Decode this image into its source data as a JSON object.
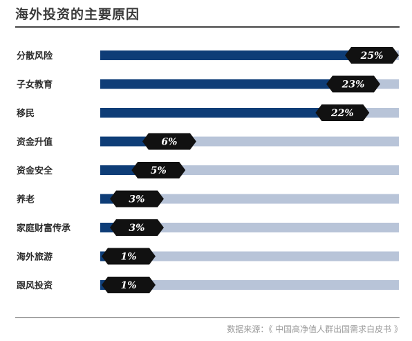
{
  "title": "海外投资的主要原因",
  "source": "数据来源：《 中国高净值人群出国需求白皮书 》",
  "colors": {
    "bar_fill": "#0e3d77",
    "bar_track": "#b8c4d8",
    "badge": "#111111",
    "badge_text": "#ffffff"
  },
  "chart_data": {
    "type": "bar",
    "orientation": "horizontal",
    "title": "海外投资的主要原因",
    "categories": [
      "分散风险",
      "子女教育",
      "移民",
      "资金升值",
      "资金安全",
      "养老",
      "家庭财富传承",
      "海外旅游",
      "跟风投资"
    ],
    "values": [
      25,
      23,
      22,
      6,
      5,
      3,
      3,
      1,
      1
    ],
    "value_labels": [
      "25%",
      "23%",
      "22%",
      "6%",
      "5%",
      "3%",
      "3%",
      "1%",
      "1%"
    ],
    "unit": "%",
    "xlim": [
      0,
      27.6
    ],
    "grid": false,
    "legend": "none"
  }
}
